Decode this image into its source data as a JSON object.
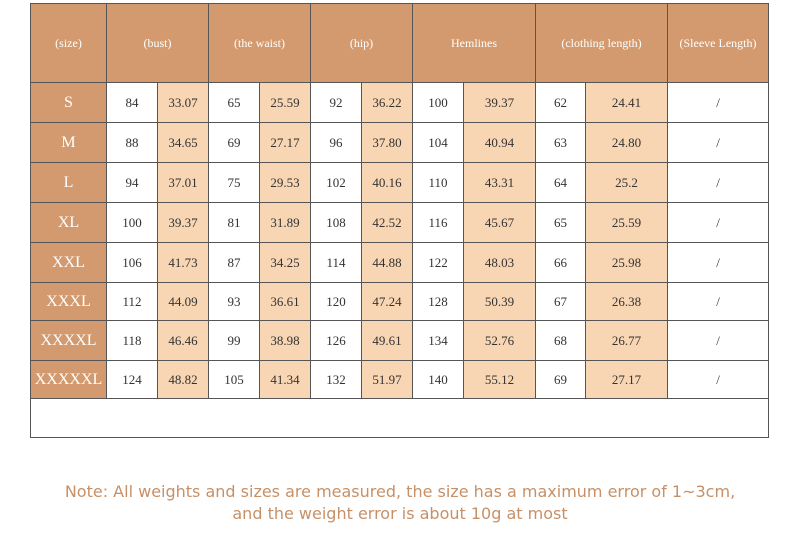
{
  "table": {
    "headers": [
      "(size)",
      "(bust)",
      "(the waist)",
      "(hip)",
      "Hemlines",
      "(clothing length)",
      "(Sleeve Length)"
    ],
    "rows": [
      [
        "S",
        "84",
        "33.07",
        "65",
        "25.59",
        "92",
        "36.22",
        "100",
        "39.37",
        "62",
        "24.41",
        "/"
      ],
      [
        "M",
        "88",
        "34.65",
        "69",
        "27.17",
        "96",
        "37.80",
        "104",
        "40.94",
        "63",
        "24.80",
        "/"
      ],
      [
        "L",
        "94",
        "37.01",
        "75",
        "29.53",
        "102",
        "40.16",
        "110",
        "43.31",
        "64",
        "25.2",
        "/"
      ],
      [
        "XL",
        "100",
        "39.37",
        "81",
        "31.89",
        "108",
        "42.52",
        "116",
        "45.67",
        "65",
        "25.59",
        "/"
      ],
      [
        "XXL",
        "106",
        "41.73",
        "87",
        "34.25",
        "114",
        "44.88",
        "122",
        "48.03",
        "66",
        "25.98",
        "/"
      ],
      [
        "XXXL",
        "112",
        "44.09",
        "93",
        "36.61",
        "120",
        "47.24",
        "128",
        "50.39",
        "67",
        "26.38",
        "/"
      ],
      [
        "XXXXL",
        "118",
        "46.46",
        "99",
        "38.98",
        "126",
        "49.61",
        "134",
        "52.76",
        "68",
        "26.77",
        "/"
      ],
      [
        "XXXXXL",
        "124",
        "48.82",
        "105",
        "41.34",
        "132",
        "51.97",
        "140",
        "55.12",
        "69",
        "27.17",
        "/"
      ]
    ]
  },
  "note": {
    "lines": [
      "Note: All weights and sizes are measured, the size has a maximum error of 1~3cm,",
      "and the weight error is about 10g at most"
    ]
  }
}
